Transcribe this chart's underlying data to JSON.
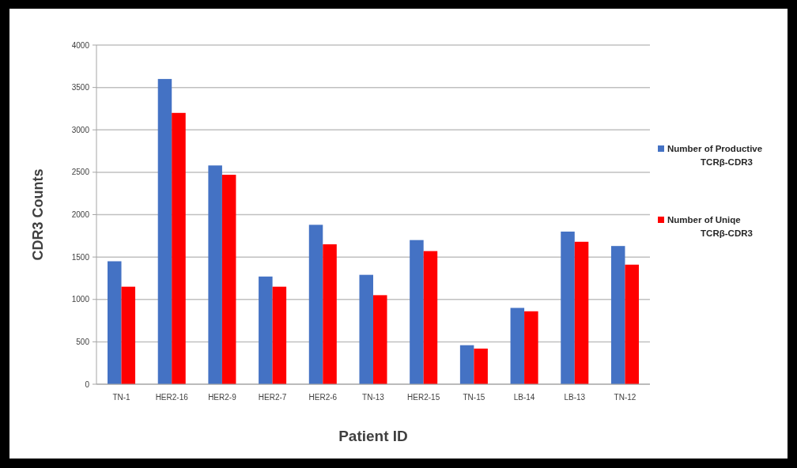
{
  "chart_data": {
    "type": "bar",
    "xlabel": "Patient ID",
    "ylabel": "CDR3 Counts",
    "categories": [
      "TN-1",
      "HER2-16",
      "HER2-9",
      "HER2-7",
      "HER2-6",
      "TN-13",
      "HER2-15",
      "TN-15",
      "LB-14",
      "LB-13",
      "TN-12"
    ],
    "series": [
      {
        "name": "Number of Productive TCRβ-CDR3",
        "color": "#4472c4",
        "values": [
          1450,
          3600,
          2580,
          1270,
          1880,
          1290,
          1700,
          460,
          900,
          1800,
          1630
        ]
      },
      {
        "name": "Number of Uniqe TCRβ-CDR3",
        "color": "#ff0000",
        "values": [
          1150,
          3200,
          2470,
          1150,
          1650,
          1050,
          1570,
          420,
          860,
          1680,
          1410
        ]
      }
    ],
    "ylim": [
      0,
      4000
    ],
    "yticks": [
      0,
      500,
      1000,
      1500,
      2000,
      2500,
      3000,
      3500,
      4000
    ],
    "grid": "y",
    "legend": "right"
  }
}
